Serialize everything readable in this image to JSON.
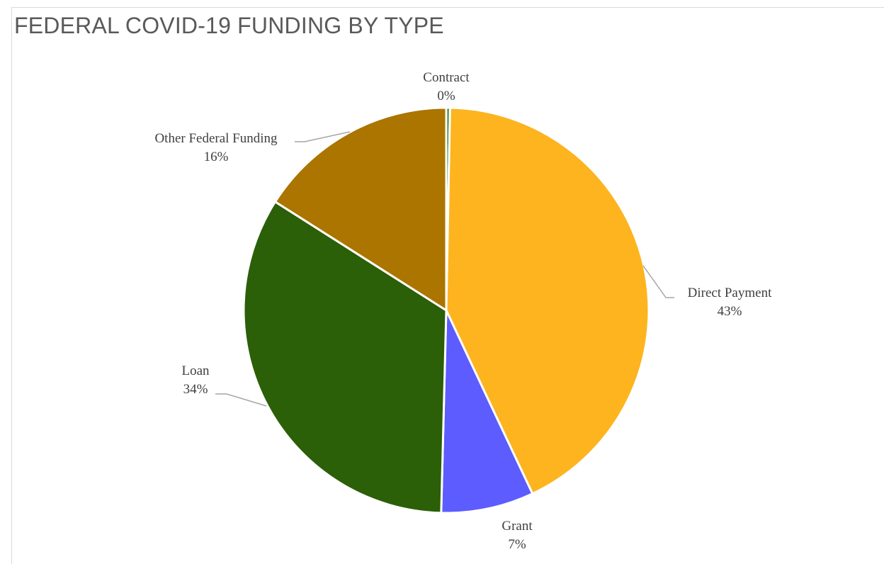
{
  "chart_data": {
    "type": "pie",
    "title": "FEDERAL COVID-19 FUNDING BY TYPE",
    "categories": [
      "Contract",
      "Direct Payment",
      "Grant",
      "Loan",
      "Other Federal Funding"
    ],
    "values": [
      0.3,
      42.7,
      7.4,
      33.6,
      16.0
    ],
    "labels": [
      "0%",
      "43%",
      "7%",
      "34%",
      "16%"
    ],
    "colors": [
      "#3a8a3a",
      "#fdb41f",
      "#5c5cff",
      "#2b5f08",
      "#ab7500"
    ],
    "legend": "none"
  }
}
